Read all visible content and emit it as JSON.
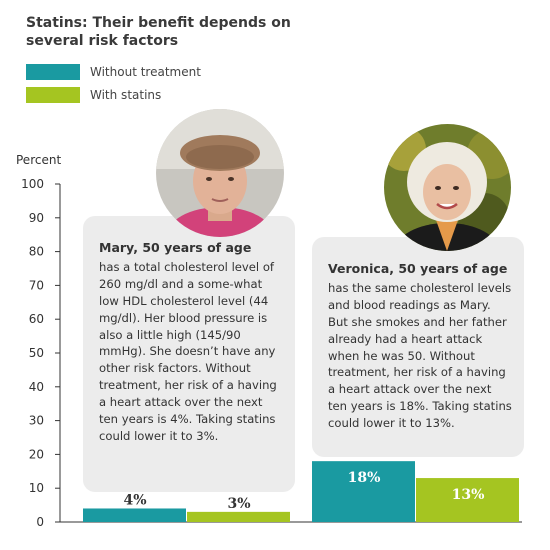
{
  "title": "Statins: Their benefit depends on several risk factors",
  "legend": [
    {
      "label": "Without treatment",
      "color": "#1a9aa1"
    },
    {
      "label": "With statins",
      "color": "#a5c521"
    }
  ],
  "ylabel": "Percent",
  "people": [
    {
      "name": "Mary, 50 years of age",
      "text": "has a total cholesterol level of 260 mg/dl and a some-what low HDL cholesterol level (44 mg/dl). Her blood pressure is also a little high (145/90 mmHg). She doesn’t have any other risk factors. Without treatment, her risk of a having a heart attack over the next ten years is 4%. Taking statins could lower it to 3%."
    },
    {
      "name": "Veronica, 50 years of age",
      "text": "has the same cholesterol levels and blood readings as Mary. But she smokes and her father already had a heart attack when he was 50. Without treatment, her risk of a having a heart attack over the next ten years is 18%. Taking statins could lower it to 13%."
    }
  ],
  "chart_data": {
    "type": "bar",
    "categories": [
      "Mary",
      "Veronica"
    ],
    "series": [
      {
        "name": "Without treatment",
        "values": [
          4,
          18
        ],
        "labels": [
          "4%",
          "18%"
        ],
        "color": "#1a9aa1"
      },
      {
        "name": "With statins",
        "values": [
          3,
          13
        ],
        "labels": [
          "3%",
          "13%"
        ],
        "color": "#a5c521"
      }
    ],
    "ylabel": "Percent",
    "ylim": [
      0,
      100
    ],
    "yticks": [
      0,
      10,
      20,
      30,
      40,
      50,
      60,
      70,
      80,
      90,
      100
    ],
    "grid": false
  }
}
